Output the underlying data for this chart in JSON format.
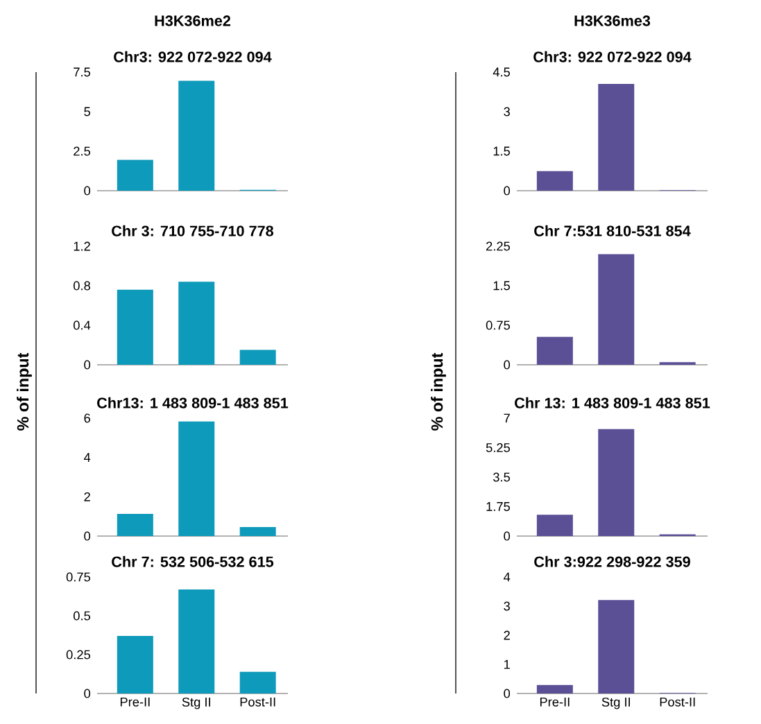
{
  "chart_data": [
    {
      "type": "bar",
      "title": "Chr3: 922 072-922 094",
      "annotations": [
        "H3K36me2"
      ],
      "categories": [
        null,
        null,
        null
      ],
      "values": [
        1.95,
        6.95,
        0.05
      ],
      "color": "#0e9aba",
      "ylim": [
        0,
        7.5
      ],
      "yticks": [
        0,
        2.5,
        5,
        7.5
      ]
    },
    {
      "type": "bar",
      "title": "Chr 3: 710 755-710 778",
      "categories": [
        null,
        null,
        null
      ],
      "values": [
        0.76,
        0.84,
        0.15
      ],
      "color": "#0e9aba",
      "ylim": [
        0,
        1.2
      ],
      "yticks": [
        0,
        0.4,
        0.8,
        1.2
      ]
    },
    {
      "type": "bar",
      "title": "Chr13: 1 483 809-1 483 851",
      "ylabel": "% of input",
      "categories": [
        null,
        null,
        null
      ],
      "values": [
        1.13,
        5.83,
        0.46
      ],
      "color": "#0e9aba",
      "ylim": [
        0,
        6
      ],
      "yticks": [
        0,
        2,
        4,
        6
      ]
    },
    {
      "type": "bar",
      "title": "Chr 7: 532 506-532 615",
      "categories": [
        "Pre-II",
        "Stg II",
        "Post-II"
      ],
      "values": [
        0.37,
        0.67,
        0.14
      ],
      "color": "#0e9aba",
      "ylim": [
        0,
        0.75
      ],
      "yticks": [
        0,
        0.25,
        0.5,
        0.75
      ]
    },
    {
      "type": "bar",
      "title": "Chr3: 922 072-922 094",
      "annotations": [
        "H3K36me3"
      ],
      "categories": [
        null,
        null,
        null
      ],
      "values": [
        0.74,
        4.05,
        0.02
      ],
      "color": "#5b4f96",
      "ylim": [
        0,
        4.5
      ],
      "yticks": [
        0,
        1.5,
        3,
        4.5
      ]
    },
    {
      "type": "bar",
      "title": "Chr 7:531 810-531 854",
      "categories": [
        null,
        null,
        null
      ],
      "values": [
        0.53,
        2.1,
        0.05
      ],
      "color": "#5b4f96",
      "ylim": [
        0,
        2.25
      ],
      "yticks": [
        0,
        0.75,
        1.5,
        2.25
      ]
    },
    {
      "type": "bar",
      "title": "Chr 13: 1 483 809-1 483 851",
      "ylabel": "% of input",
      "categories": [
        null,
        null,
        null
      ],
      "values": [
        1.27,
        6.35,
        0.1
      ],
      "color": "#5b4f96",
      "ylim": [
        0,
        7
      ],
      "yticks": [
        0,
        1.75,
        3.5,
        5.25,
        7
      ]
    },
    {
      "type": "bar",
      "title": "Chr 3:922 298-922 359",
      "categories": [
        "Pre-II",
        "Stg II",
        "Post-II"
      ],
      "values": [
        0.29,
        3.21,
        0.02
      ],
      "color": "#5b4f96",
      "ylim": [
        0,
        4
      ],
      "yticks": [
        0,
        1,
        2,
        3,
        4
      ]
    }
  ]
}
